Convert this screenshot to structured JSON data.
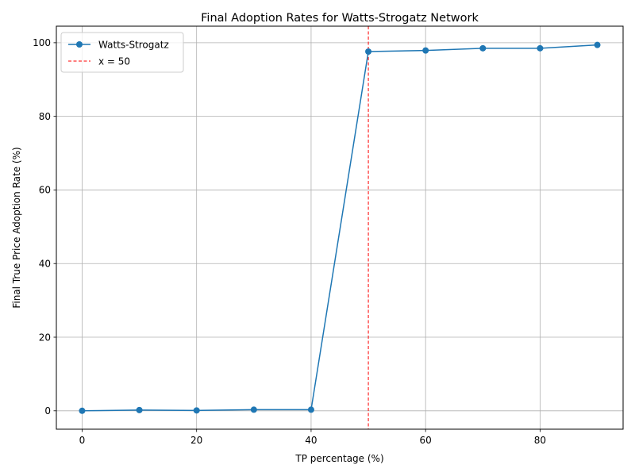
{
  "chart_data": {
    "type": "line",
    "title": "Final Adoption Rates for Watts-Strogatz Network",
    "xlabel": "TP percentage (%)",
    "ylabel": "Final True Price Adoption Rate (%)",
    "xlim": [
      -4.5,
      94.5
    ],
    "ylim": [
      -5,
      104.5
    ],
    "xticks": [
      0,
      20,
      40,
      60,
      80
    ],
    "yticks": [
      0,
      20,
      40,
      60,
      80,
      100
    ],
    "grid": true,
    "legend_position": "upper left",
    "series": [
      {
        "name": "Watts-Strogatz",
        "color": "#1f77b4",
        "marker": "circle",
        "x": [
          0,
          10,
          20,
          30,
          40,
          50,
          60,
          70,
          80,
          90
        ],
        "y": [
          0.0,
          0.2,
          0.1,
          0.3,
          0.3,
          97.6,
          97.9,
          98.5,
          98.5,
          99.4
        ]
      }
    ],
    "reference_lines": [
      {
        "axis": "x",
        "value": 50,
        "label": "x = 50",
        "color": "#ff0000",
        "style": "dashed"
      }
    ]
  }
}
